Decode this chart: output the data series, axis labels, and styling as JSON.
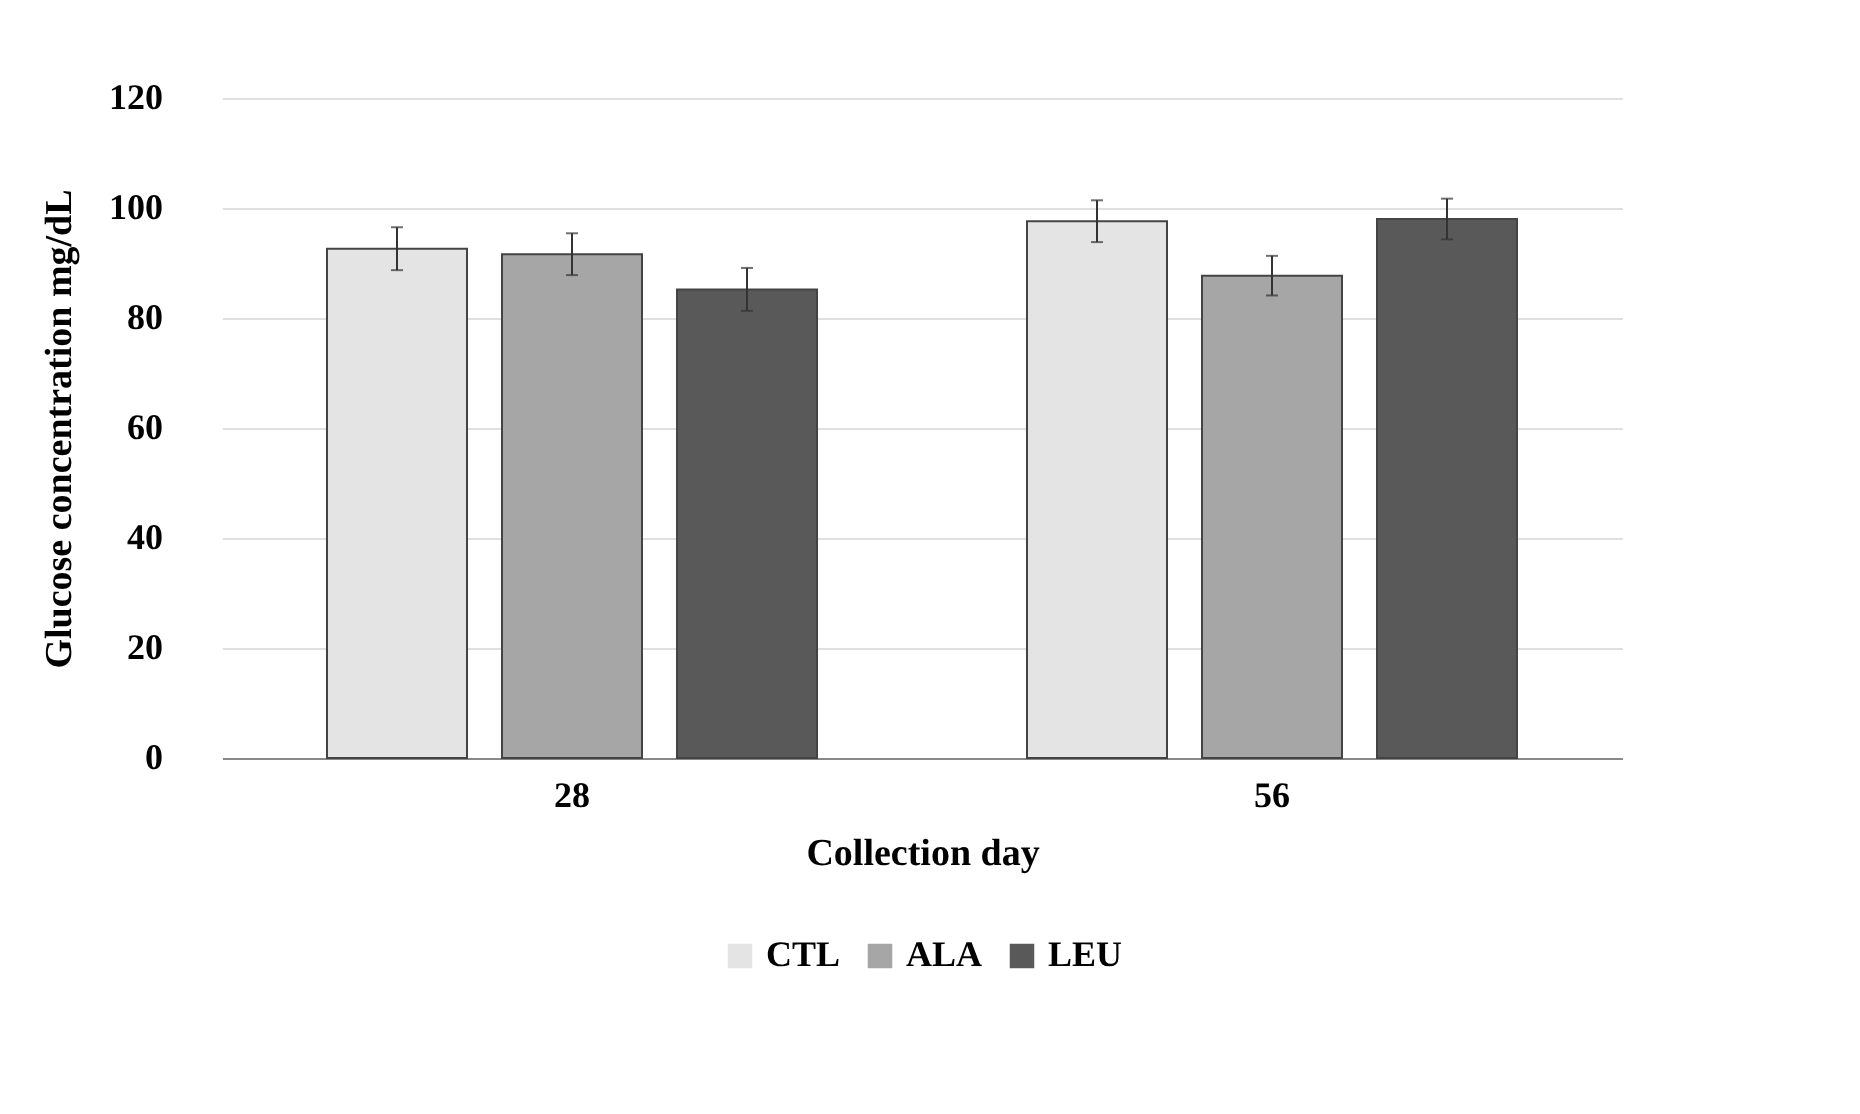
{
  "chart_data": {
    "type": "bar",
    "xlabel": "Collection day",
    "ylabel": "Glucose concentration mg/dL",
    "categories": [
      "28",
      "56"
    ],
    "series": [
      {
        "name": "CTL",
        "color": "#e4e4e4",
        "values": [
          92.6,
          97.6
        ],
        "errors": [
          3.9,
          3.8
        ]
      },
      {
        "name": "ALA",
        "color": "#a6a6a6",
        "values": [
          91.6,
          87.7
        ],
        "errors": [
          3.8,
          3.6
        ]
      },
      {
        "name": "LEU",
        "color": "#595959",
        "values": [
          85.2,
          98.0
        ],
        "errors": [
          3.9,
          3.7
        ]
      }
    ],
    "ylim": [
      0,
      120
    ],
    "yticks": [
      0,
      20,
      40,
      60,
      80,
      100,
      120
    ],
    "grid": "y",
    "legend": "bottom"
  }
}
